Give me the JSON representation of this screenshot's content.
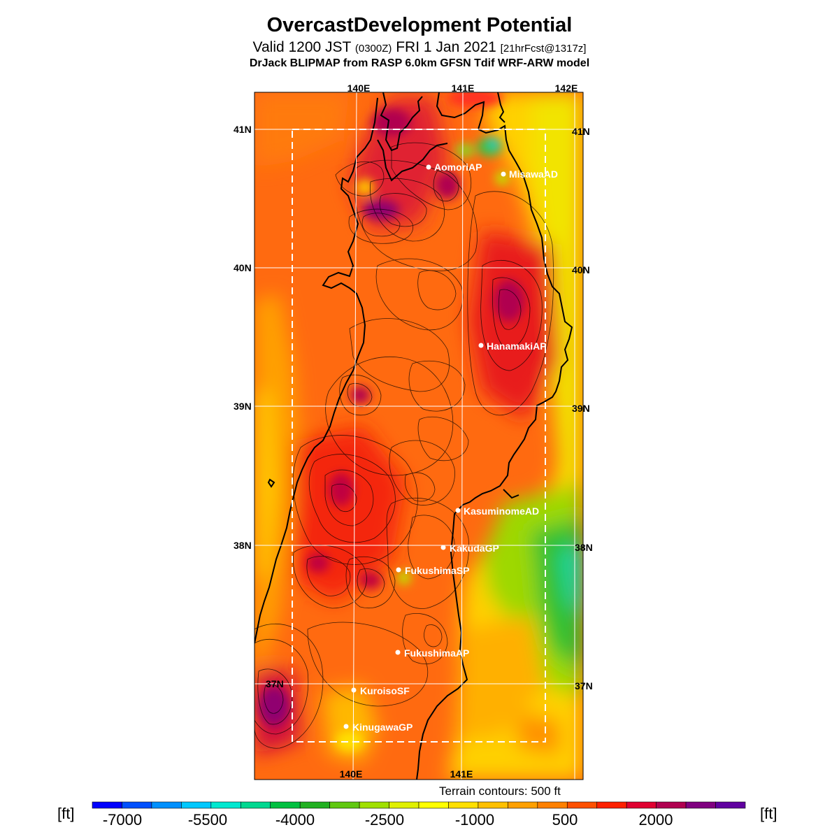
{
  "header": {
    "title": "OvercastDevelopment Potential",
    "valid_prefix": "Valid 1200 JST",
    "valid_zulu": "(0300Z)",
    "valid_date": "FRI 1 Jan 2021",
    "forecast": "[21hrFcst@1317z]",
    "model": "DrJack BLIPMAP from RASP 6.0km GFSN Tdif WRF-ARW model"
  },
  "map": {
    "region": "Tohoku, Japan",
    "lon_labels_top": [
      "140E",
      "141E",
      "142E"
    ],
    "lon_labels_bottom": [
      "140E",
      "141E"
    ],
    "lat_labels_left": [
      "41N",
      "40N",
      "39N",
      "38N",
      "37N"
    ],
    "lat_labels_right": [
      "41N",
      "40N",
      "39N",
      "38N",
      "37N"
    ],
    "stations": [
      "AomoriAP",
      "MisawaAD",
      "HanamakiAP",
      "KasuminomeAD",
      "KakudaGP",
      "FukushimaSP",
      "FukushimaAP",
      "KuroisoSF",
      "KinugawaGP"
    ],
    "terrain_note": "Terrain contours: 500 ft"
  },
  "colorbar": {
    "unit": "[ft]",
    "tick_labels": [
      "-7000",
      "-5500",
      "-4000",
      "-2500",
      "-1000",
      "500",
      "2000"
    ],
    "colors": [
      "#0000ff",
      "#0050ff",
      "#0090ff",
      "#00c8ff",
      "#00e8d0",
      "#00d890",
      "#00c040",
      "#20b020",
      "#60c810",
      "#a0e000",
      "#e0f000",
      "#ffff00",
      "#ffe000",
      "#ffc000",
      "#ffa000",
      "#ff8000",
      "#ff5000",
      "#ff2000",
      "#e00030",
      "#b00050",
      "#800080",
      "#6000a0"
    ]
  }
}
